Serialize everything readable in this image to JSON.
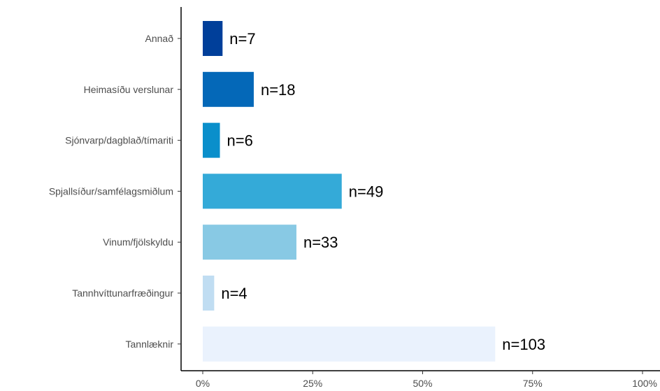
{
  "chart_data": {
    "type": "bar",
    "orientation": "horizontal",
    "categories": [
      "Annað",
      "Heimasíðu verslunar",
      "Sjónvarp/dagblað/tímariti",
      "Spjallsíður/samfélagsmiðlum",
      "Vinum/fjölskyldu",
      "Tannhvíttunarfræðingur",
      "Tannlæknir"
    ],
    "values": [
      4.5,
      11.6,
      3.9,
      31.6,
      21.3,
      2.6,
      66.5
    ],
    "data_labels": [
      "n=7",
      "n=18",
      "n=6",
      "n=49",
      "n=33",
      "n=4",
      "n=103"
    ],
    "colors": [
      "#003f9a",
      "#0468b8",
      "#0a8fcb",
      "#34aad8",
      "#88c9e4",
      "#c0ddf2",
      "#eaf2fd"
    ],
    "xlim": [
      0,
      100
    ],
    "x_ticks": [
      0,
      25,
      50,
      75,
      100
    ],
    "x_tick_labels": [
      "0%",
      "25%",
      "50%",
      "75%",
      "100%"
    ],
    "title": "",
    "xlabel": "",
    "ylabel": "",
    "grid": false,
    "legend": "none"
  }
}
